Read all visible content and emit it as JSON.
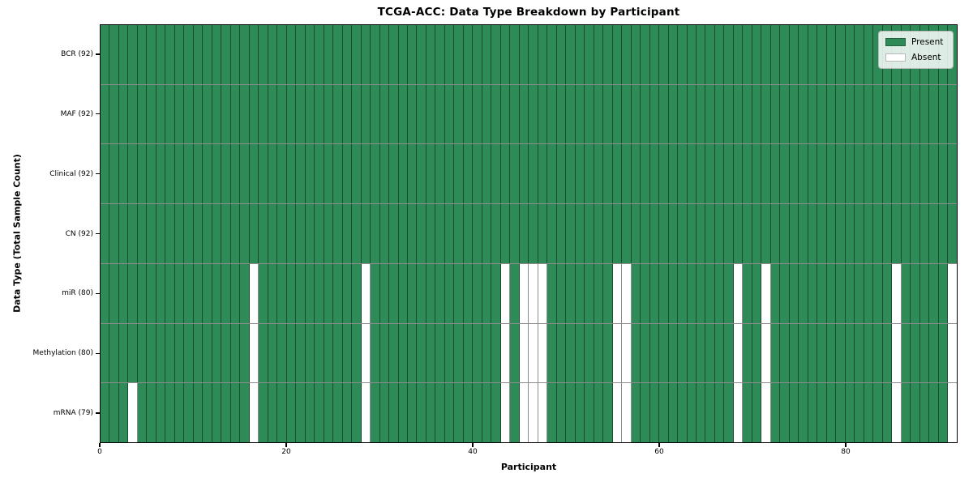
{
  "chart_data": {
    "type": "heatmap",
    "title": "TCGA-ACC: Data Type Breakdown by Participant",
    "xlabel": "Participant",
    "ylabel": "Data Type (Total Sample Count)",
    "n_participants": 92,
    "x_ticks": [
      0,
      20,
      40,
      60,
      80
    ],
    "x_range": [
      0,
      92
    ],
    "grid": "cell-borders",
    "colors": {
      "present": "#2e8b57",
      "absent": "#ffffff",
      "grid_line": "rgba(0,0,0,0.45)"
    },
    "legend": {
      "position": "upper right",
      "entries": [
        {
          "label": "Present",
          "color": "#2e8b57"
        },
        {
          "label": "Absent",
          "color": "#ffffff"
        }
      ]
    },
    "rows": [
      {
        "label": "BCR (92)",
        "total_samples": 92,
        "absent_participants": []
      },
      {
        "label": "MAF (92)",
        "total_samples": 92,
        "absent_participants": []
      },
      {
        "label": "Clinical (92)",
        "total_samples": 92,
        "absent_participants": []
      },
      {
        "label": "CN (92)",
        "total_samples": 92,
        "absent_participants": []
      },
      {
        "label": "miR (80)",
        "total_samples": 80,
        "absent_participants": [
          16,
          28,
          43,
          45,
          46,
          47,
          55,
          56,
          68,
          71,
          85,
          91
        ]
      },
      {
        "label": "Methylation (80)",
        "total_samples": 80,
        "absent_participants": [
          16,
          28,
          43,
          45,
          46,
          47,
          55,
          56,
          68,
          71,
          85,
          91
        ]
      },
      {
        "label": "mRNA (79)",
        "total_samples": 79,
        "absent_participants": [
          3,
          16,
          28,
          43,
          45,
          46,
          47,
          55,
          56,
          68,
          71,
          85,
          91
        ]
      }
    ]
  }
}
